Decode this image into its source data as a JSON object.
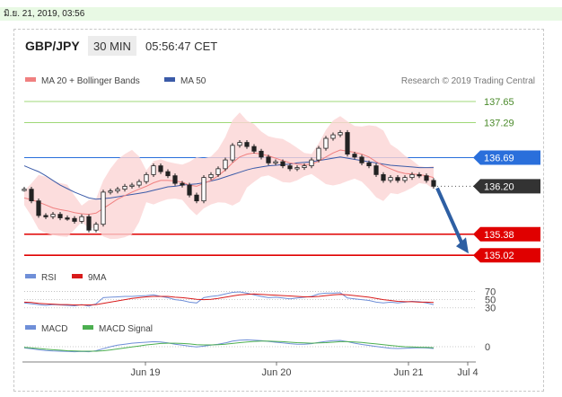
{
  "date_header": "มิ.ย. 21, 2019, 03:56",
  "header": {
    "pair": "GBP/JPY",
    "timeframe": "30 MIN",
    "time": "05:56:47 CET"
  },
  "legend": {
    "ma20": "MA 20 + Bollinger Bands",
    "ma50": "MA 50",
    "research": "Research © 2019 Trading Central"
  },
  "colors": {
    "ma20": "#f08080",
    "ma50": "#3b5ba8",
    "bollinger_fill": "#fbd4d4",
    "support": "#e00000",
    "resistance_green": "#9fd878",
    "pivot_blue": "#2a6fdb",
    "current_price_bg": "#333333",
    "arrow": "#2e5fa3",
    "rsi": "#6f8fd8",
    "rsi_9ma": "#d81b1b",
    "macd": "#6f8fd8",
    "macd_signal": "#4caf50"
  },
  "chart_data": [
    {
      "type": "line",
      "title": "GBP/JPY 30 MIN",
      "ylim": [
        134.9,
        137.85
      ],
      "x_ticks": [
        "Jun 19",
        "Jun 20",
        "Jun 21",
        "Jul 4"
      ],
      "levels": [
        {
          "name": "137.65",
          "value": 137.65,
          "style": "resistance"
        },
        {
          "name": "137.29",
          "value": 137.29,
          "style": "resistance"
        },
        {
          "name": "136.69",
          "value": 136.69,
          "style": "pivot"
        },
        {
          "name": "136.20",
          "value": 136.2,
          "style": "current"
        },
        {
          "name": "135.38",
          "value": 135.38,
          "style": "support"
        },
        {
          "name": "135.02",
          "value": 135.02,
          "style": "support"
        }
      ],
      "series": [
        {
          "name": "Price",
          "values": [
            136.15,
            135.95,
            135.7,
            135.68,
            135.72,
            135.66,
            135.65,
            135.6,
            135.68,
            135.45,
            135.55,
            136.1,
            136.12,
            136.15,
            136.2,
            136.22,
            136.28,
            136.4,
            136.55,
            136.45,
            136.38,
            136.25,
            136.22,
            136.05,
            135.95,
            136.35,
            136.4,
            136.5,
            136.65,
            136.9,
            136.95,
            136.88,
            136.8,
            136.7,
            136.6,
            136.62,
            136.55,
            136.5,
            136.52,
            136.55,
            136.65,
            136.85,
            137.02,
            137.08,
            137.12,
            136.75,
            136.7,
            136.6,
            136.55,
            136.4,
            136.3,
            136.35,
            136.3,
            136.35,
            136.4,
            136.38,
            136.3,
            136.2
          ]
        },
        {
          "name": "MA 20",
          "values": [
            136.0,
            135.97,
            135.93,
            135.88,
            135.83,
            135.8,
            135.78,
            135.75,
            135.73,
            135.72,
            135.74,
            135.82,
            135.9,
            135.98,
            136.04,
            136.1,
            136.15,
            136.2,
            136.26,
            136.3,
            136.3,
            136.29,
            136.27,
            136.22,
            136.2,
            136.25,
            136.3,
            136.38,
            136.48,
            136.6,
            136.7,
            136.75,
            136.77,
            136.75,
            136.72,
            136.68,
            136.64,
            136.6,
            136.58,
            136.57,
            136.58,
            136.63,
            136.7,
            136.77,
            136.82,
            136.8,
            136.78,
            136.75,
            136.7,
            136.62,
            136.55,
            136.5,
            136.45,
            136.42,
            136.41,
            136.4,
            136.38,
            136.35
          ]
        },
        {
          "name": "MA 50",
          "values": [
            136.55,
            136.5,
            136.45,
            136.38,
            136.3,
            136.22,
            136.16,
            136.1,
            136.05,
            136.0,
            135.98,
            135.99,
            136.0,
            136.02,
            136.04,
            136.06,
            136.08,
            136.1,
            136.13,
            136.16,
            136.19,
            136.2,
            136.22,
            136.23,
            136.24,
            136.26,
            136.29,
            136.32,
            136.36,
            136.4,
            136.44,
            136.48,
            136.51,
            136.53,
            136.55,
            136.56,
            136.57,
            136.58,
            136.6,
            136.61,
            136.62,
            136.64,
            136.66,
            136.68,
            136.7,
            136.68,
            136.66,
            136.64,
            136.62,
            136.6,
            136.58,
            136.56,
            136.55,
            136.54,
            136.53,
            136.52,
            136.52,
            136.52
          ]
        }
      ]
    },
    {
      "type": "line",
      "title": "RSI",
      "ylim": [
        25,
        80
      ],
      "y_ticks": [
        "70",
        "50",
        "30"
      ],
      "series": [
        {
          "name": "RSI",
          "values": [
            42,
            40,
            38,
            36,
            38,
            37,
            36,
            35,
            38,
            34,
            40,
            55,
            56,
            57,
            58,
            58,
            59,
            60,
            62,
            58,
            55,
            50,
            48,
            44,
            42,
            55,
            58,
            60,
            64,
            68,
            69,
            66,
            62,
            58,
            55,
            56,
            54,
            52,
            54,
            56,
            58,
            64,
            66,
            66,
            67,
            54,
            52,
            50,
            48,
            44,
            42,
            44,
            42,
            44,
            46,
            45,
            42,
            38
          ]
        },
        {
          "name": "9MA",
          "values": [
            44,
            43,
            41,
            40,
            39,
            38,
            38,
            37,
            37,
            37,
            38,
            41,
            44,
            47,
            50,
            53,
            55,
            57,
            58,
            58,
            58,
            56,
            55,
            53,
            51,
            50,
            51,
            53,
            56,
            59,
            62,
            63,
            64,
            63,
            62,
            61,
            60,
            59,
            58,
            57,
            57,
            58,
            60,
            62,
            63,
            62,
            60,
            58,
            56,
            53,
            50,
            48,
            46,
            45,
            45,
            44,
            44,
            43
          ]
        }
      ]
    },
    {
      "type": "line",
      "title": "MACD",
      "ylim": [
        -0.5,
        0.5
      ],
      "y_ticks": [
        "0"
      ],
      "series": [
        {
          "name": "MACD",
          "values": [
            -0.05,
            -0.08,
            -0.12,
            -0.15,
            -0.17,
            -0.18,
            -0.19,
            -0.2,
            -0.19,
            -0.2,
            -0.16,
            -0.08,
            0.0,
            0.06,
            0.1,
            0.14,
            0.16,
            0.18,
            0.2,
            0.19,
            0.15,
            0.1,
            0.06,
            0.02,
            -0.01,
            0.02,
            0.06,
            0.1,
            0.15,
            0.22,
            0.26,
            0.27,
            0.26,
            0.24,
            0.21,
            0.18,
            0.15,
            0.12,
            0.1,
            0.1,
            0.12,
            0.17,
            0.21,
            0.24,
            0.25,
            0.2,
            0.14,
            0.09,
            0.05,
            0.01,
            -0.03,
            -0.06,
            -0.07,
            -0.06,
            -0.05,
            -0.04,
            -0.05,
            -0.07
          ]
        },
        {
          "name": "MACD Signal",
          "values": [
            -0.03,
            -0.05,
            -0.07,
            -0.1,
            -0.12,
            -0.14,
            -0.16,
            -0.17,
            -0.18,
            -0.18,
            -0.18,
            -0.16,
            -0.13,
            -0.09,
            -0.05,
            -0.01,
            0.03,
            0.07,
            0.1,
            0.13,
            0.14,
            0.14,
            0.13,
            0.11,
            0.08,
            0.07,
            0.07,
            0.08,
            0.1,
            0.13,
            0.16,
            0.19,
            0.21,
            0.22,
            0.22,
            0.21,
            0.2,
            0.18,
            0.16,
            0.15,
            0.14,
            0.15,
            0.16,
            0.18,
            0.2,
            0.2,
            0.19,
            0.17,
            0.14,
            0.11,
            0.08,
            0.05,
            0.02,
            0.0,
            -0.01,
            -0.02,
            -0.03,
            -0.04
          ]
        }
      ]
    }
  ]
}
